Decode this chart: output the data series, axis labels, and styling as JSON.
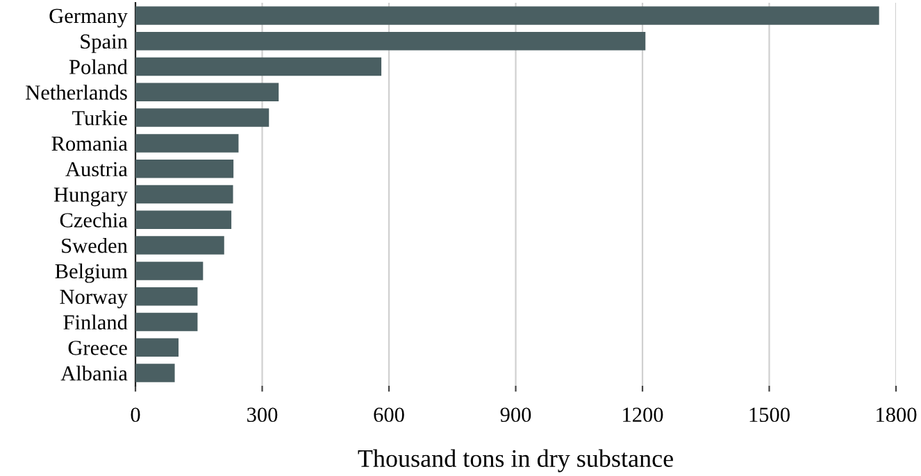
{
  "chart_data": {
    "type": "bar",
    "orientation": "horizontal",
    "xlabel": "Thousand tons in dry substance",
    "categories": [
      "Germany",
      "Spain",
      "Poland",
      "Netherlands",
      "Turkie",
      "Romania",
      "Austria",
      "Hungary",
      "Czechia",
      "Sweden",
      "Belgium",
      "Norway",
      "Finland",
      "Greece",
      "Albania"
    ],
    "values": [
      1760,
      1207,
      582,
      339,
      316,
      244,
      232,
      231,
      227,
      210,
      160,
      147,
      147,
      102,
      93
    ],
    "color": "#4a5f62",
    "xlim": [
      0,
      1800
    ],
    "xticks": [
      0,
      300,
      600,
      900,
      1200,
      1500,
      1800
    ],
    "grid": "x"
  }
}
